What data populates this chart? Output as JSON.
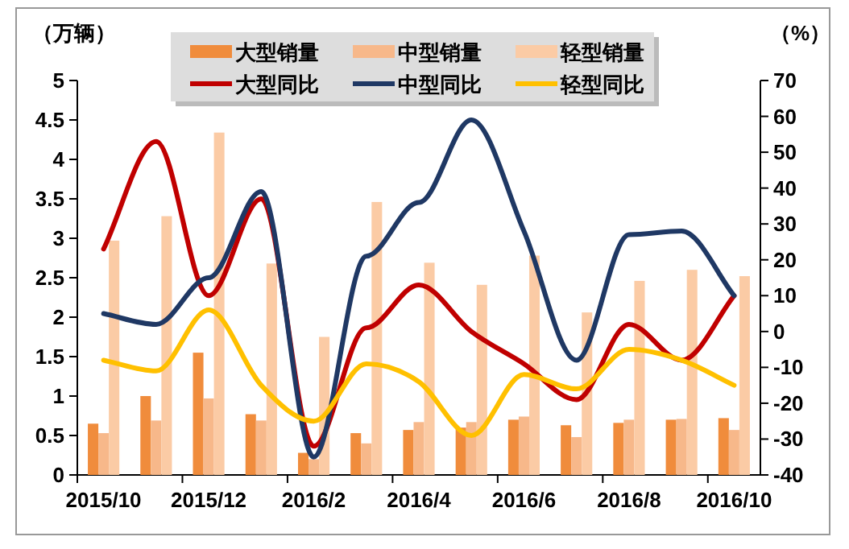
{
  "chart_data": {
    "type": "bar",
    "ylabel": "（万辆）",
    "y2label": "（%）",
    "categories": [
      "2015/10",
      null,
      "2015/12",
      null,
      "2016/2",
      null,
      "2016/4",
      null,
      "2016/6",
      null,
      "2016/8",
      null,
      "2016/10"
    ],
    "series": [
      {
        "name": "大型销量",
        "color": "#f08c3c",
        "values": [
          0.65,
          1.0,
          1.55,
          0.77,
          0.28,
          0.53,
          0.57,
          0.6,
          0.7,
          0.63,
          0.66,
          0.7,
          0.72
        ]
      },
      {
        "name": "中型销量",
        "color": "#f7b88a",
        "values": [
          0.53,
          0.69,
          0.97,
          0.69,
          0.2,
          0.4,
          0.67,
          0.67,
          0.74,
          0.48,
          0.7,
          0.71,
          0.57
        ]
      },
      {
        "name": "轻型销量",
        "color": "#fbcba5",
        "values": [
          2.97,
          3.28,
          4.34,
          2.68,
          1.75,
          3.46,
          2.69,
          2.41,
          2.78,
          2.06,
          2.46,
          2.6,
          2.52
        ]
      },
      {
        "name": "大型同比",
        "color": "#c00000",
        "type": "line",
        "axis": "y2",
        "values": [
          23,
          53,
          10,
          37,
          -32,
          1,
          13,
          0,
          -9,
          -19,
          2,
          -8,
          10
        ]
      },
      {
        "name": "中型同比",
        "color": "#1f3864",
        "type": "line",
        "axis": "y2",
        "values": [
          5,
          2,
          15,
          39,
          -35,
          21,
          36,
          59,
          28,
          -8,
          27,
          28,
          10
        ]
      },
      {
        "name": "轻型同比",
        "color": "#ffc000",
        "type": "line",
        "axis": "y2",
        "values": [
          -8,
          -11,
          6,
          -15,
          -25,
          -9,
          -14,
          -29,
          -12,
          -16,
          -5,
          -8,
          -15
        ]
      }
    ],
    "ylim": [
      0,
      5
    ],
    "yticks": [
      0,
      0.5,
      1,
      1.5,
      2,
      2.5,
      3,
      3.5,
      4,
      4.5,
      5
    ],
    "y2lim": [
      -40,
      70
    ],
    "y2ticks": [
      -40,
      -30,
      -20,
      -10,
      0,
      10,
      20,
      30,
      40,
      50,
      60,
      70
    ],
    "legend": "top",
    "grid": false,
    "marker": "none",
    "line_style": "solid"
  }
}
